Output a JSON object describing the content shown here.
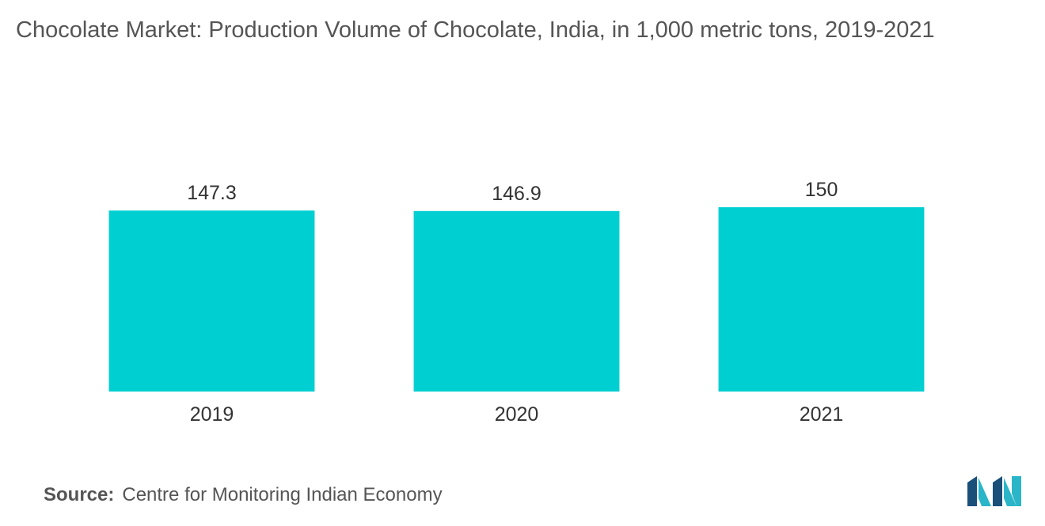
{
  "title": "Chocolate Market: Production Volume of Chocolate, India, in 1,000 metric tons, 2019-2021",
  "source": {
    "label": "Source:",
    "text": "Centre for Monitoring Indian Economy"
  },
  "logo": {
    "icon": "mordor-intelligence-logo-icon",
    "colors": [
      "#1a4f7a",
      "#2bb5c8"
    ]
  },
  "chart_data": {
    "type": "bar",
    "categories": [
      "2019",
      "2020",
      "2021"
    ],
    "values": [
      147.3,
      146.9,
      150
    ],
    "value_labels": [
      "147.3",
      "146.9",
      "150"
    ],
    "title": "Chocolate Market: Production Volume of Chocolate, India, in 1,000 metric tons, 2019-2021",
    "xlabel": "",
    "ylabel": "",
    "ylim": [
      0,
      150
    ],
    "grid": false,
    "legend": "none",
    "bar_color": "#00cfd1"
  }
}
